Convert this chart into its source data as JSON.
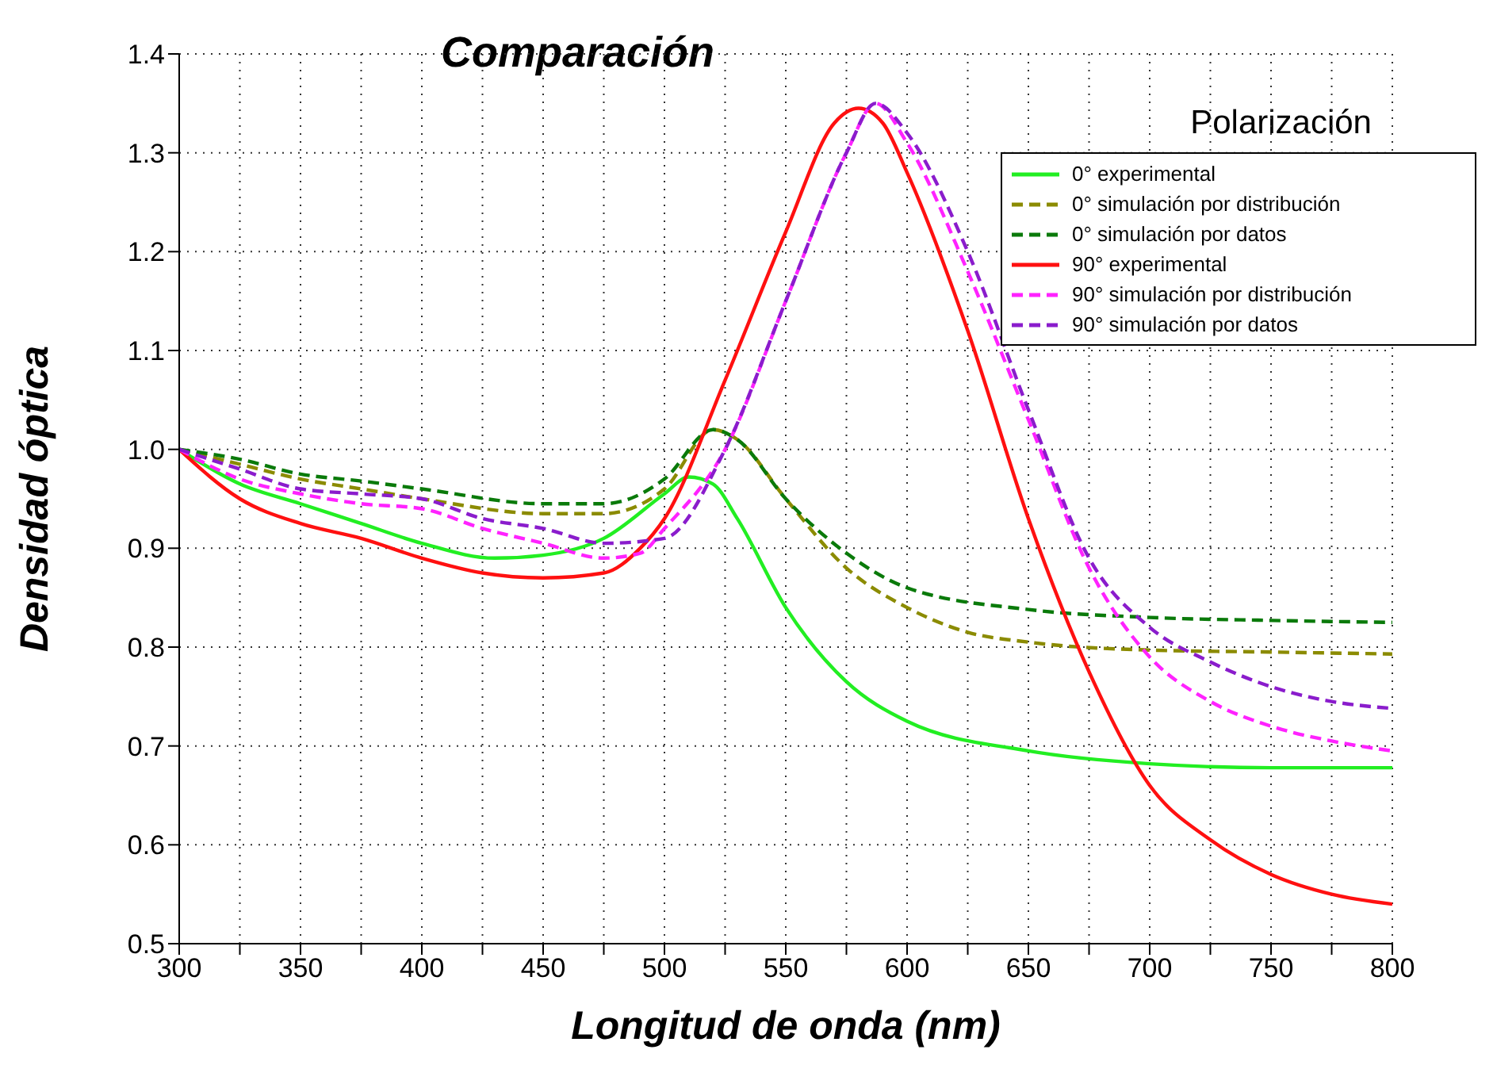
{
  "chart_data": {
    "type": "line",
    "title": "Comparación",
    "xlabel": "Longitud de onda (nm)",
    "ylabel": "Densidad óptica",
    "legend_title": "Polarización",
    "legend": "top right",
    "grid": true,
    "marker": "none",
    "xlim": [
      300,
      800
    ],
    "xticks": [
      300,
      {
        "value": 325,
        "label": null
      },
      350,
      {
        "value": 375,
        "label": null
      },
      400,
      {
        "value": 425,
        "label": null
      },
      450,
      {
        "value": 475,
        "label": null
      },
      500,
      {
        "value": 525,
        "label": null
      },
      550,
      {
        "value": 575,
        "label": null
      },
      600,
      {
        "value": 625,
        "label": null
      },
      650,
      {
        "value": 675,
        "label": null
      },
      700,
      {
        "value": 725,
        "label": null
      },
      750,
      {
        "value": 775,
        "label": null
      },
      800
    ],
    "ylim": [
      0.5,
      1.4
    ],
    "yticks": [
      0.5,
      0.6,
      0.7,
      0.8,
      0.9,
      {
        "value": 1,
        "label": "1.0"
      },
      1.1,
      1.2,
      1.3,
      1.4
    ],
    "series": [
      {
        "name": "0° experimental",
        "color": "#22ee22",
        "line_style": "solid",
        "x": [
          300,
          325,
          350,
          375,
          400,
          430,
          450,
          475,
          500,
          510,
          520,
          530,
          550,
          575,
          600,
          650,
          700,
          750,
          800
        ],
        "values": [
          1.0,
          0.965,
          0.945,
          0.925,
          0.905,
          0.89,
          0.893,
          0.91,
          0.955,
          0.972,
          0.965,
          0.93,
          0.84,
          0.765,
          0.725,
          0.695,
          0.682,
          0.678,
          0.678
        ]
      },
      {
        "name": "0° simulación por distribución",
        "color": "#8b8b00",
        "line_style": "dashed",
        "x": [
          300,
          325,
          350,
          375,
          400,
          450,
          475,
          500,
          520,
          530,
          550,
          575,
          600,
          625,
          650,
          700,
          750,
          800
        ],
        "values": [
          1.0,
          0.985,
          0.97,
          0.96,
          0.95,
          0.935,
          0.935,
          0.96,
          1.02,
          1.01,
          0.95,
          0.88,
          0.84,
          0.815,
          0.805,
          0.797,
          0.795,
          0.793
        ]
      },
      {
        "name": "0° simulación por datos",
        "color": "#0a7a0a",
        "line_style": "dashed",
        "x": [
          300,
          325,
          350,
          375,
          400,
          450,
          475,
          500,
          520,
          530,
          550,
          575,
          600,
          650,
          700,
          750,
          800
        ],
        "values": [
          1.0,
          0.99,
          0.975,
          0.968,
          0.96,
          0.945,
          0.945,
          0.97,
          1.02,
          1.01,
          0.95,
          0.895,
          0.86,
          0.838,
          0.83,
          0.827,
          0.825
        ]
      },
      {
        "name": "90° experimental",
        "color": "#ff1010",
        "line_style": "solid",
        "x": [
          300,
          325,
          350,
          375,
          400,
          425,
          450,
          475,
          490,
          500,
          525,
          550,
          570,
          580,
          590,
          600,
          625,
          650,
          675,
          700,
          725,
          750,
          775,
          800
        ],
        "values": [
          1.0,
          0.95,
          0.925,
          0.91,
          0.89,
          0.875,
          0.87,
          0.875,
          0.9,
          0.93,
          1.07,
          1.22,
          1.33,
          1.345,
          1.33,
          1.28,
          1.12,
          0.93,
          0.775,
          0.66,
          0.605,
          0.57,
          0.55,
          0.54
        ]
      },
      {
        "name": "90° simulación por distribución",
        "color": "#ff22ff",
        "line_style": "dashed",
        "x": [
          300,
          325,
          350,
          375,
          400,
          425,
          450,
          475,
          490,
          500,
          525,
          550,
          575,
          587,
          600,
          625,
          650,
          675,
          700,
          725,
          750,
          775,
          800
        ],
        "values": [
          1.0,
          0.97,
          0.955,
          0.945,
          0.94,
          0.92,
          0.905,
          0.89,
          0.895,
          0.92,
          1.0,
          1.15,
          1.3,
          1.35,
          1.31,
          1.18,
          1.03,
          0.88,
          0.79,
          0.745,
          0.72,
          0.705,
          0.695
        ]
      },
      {
        "name": "90° simulación por datos",
        "color": "#8a1ccc",
        "line_style": "dashed",
        "x": [
          300,
          325,
          350,
          375,
          400,
          425,
          450,
          475,
          500,
          525,
          550,
          575,
          587,
          600,
          625,
          650,
          675,
          700,
          725,
          750,
          775,
          800
        ],
        "values": [
          1.0,
          0.98,
          0.96,
          0.955,
          0.95,
          0.93,
          0.92,
          0.905,
          0.91,
          1.0,
          1.15,
          1.3,
          1.35,
          1.32,
          1.2,
          1.04,
          0.89,
          0.82,
          0.785,
          0.76,
          0.745,
          0.738
        ]
      }
    ]
  }
}
